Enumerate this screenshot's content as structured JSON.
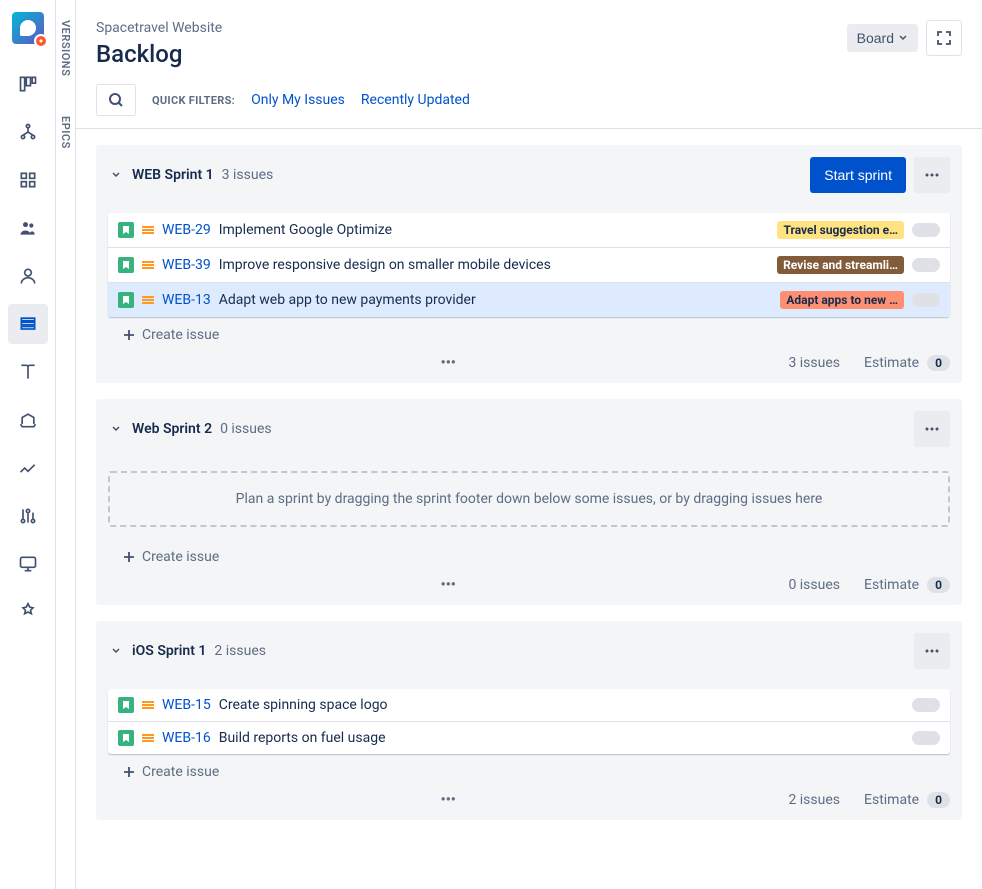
{
  "header": {
    "breadcrumb": "Spacetravel Website",
    "title": "Backlog",
    "board_label": "Board",
    "quick_filters_label": "QUICK FILTERS:",
    "filter_only_my": "Only My Issues",
    "filter_recent": "Recently Updated"
  },
  "side_panel": {
    "versions": "VERSIONS",
    "epics": "EPICS"
  },
  "sprints": [
    {
      "name": "WEB Sprint 1",
      "count_label": "3 issues",
      "has_start_button": true,
      "start_label": "Start sprint",
      "issues": [
        {
          "key": "WEB-29",
          "summary": "Implement Google Optimize",
          "selected": false,
          "epic": {
            "label": "Travel suggestion e…",
            "bg": "#ffe380",
            "fg": "#172b4d"
          }
        },
        {
          "key": "WEB-39",
          "summary": "Improve responsive design on smaller mobile devices",
          "selected": false,
          "epic": {
            "label": "Revise and streamli…",
            "bg": "#815b3a",
            "fg": "#ffffff"
          }
        },
        {
          "key": "WEB-13",
          "summary": "Adapt web app to new payments provider",
          "selected": true,
          "epic": {
            "label": "Adapt apps to new …",
            "bg": "#ff8f73",
            "fg": "#172b4d"
          }
        }
      ],
      "create_issue_label": "Create issue",
      "footer_count": "3 issues",
      "estimate_label": "Estimate",
      "estimate_value": "0",
      "empty_text": null
    },
    {
      "name": "Web Sprint 2",
      "count_label": "0 issues",
      "has_start_button": false,
      "issues": [],
      "create_issue_label": "Create issue",
      "footer_count": "0 issues",
      "estimate_label": "Estimate",
      "estimate_value": "0",
      "empty_text": "Plan a sprint by dragging the sprint footer down below some issues, or by dragging issues here"
    },
    {
      "name": "iOS Sprint 1",
      "count_label": "2 issues",
      "has_start_button": false,
      "issues": [
        {
          "key": "WEB-15",
          "summary": "Create spinning space logo",
          "selected": false,
          "epic": null
        },
        {
          "key": "WEB-16",
          "summary": "Build reports on fuel usage",
          "selected": false,
          "epic": null
        }
      ],
      "create_issue_label": "Create issue",
      "footer_count": "2 issues",
      "estimate_label": "Estimate",
      "estimate_value": "0",
      "empty_text": null
    }
  ],
  "colors": {
    "primary": "#0052cc",
    "text": "#172b4d",
    "subtle_text": "#5e6c84",
    "panel_bg": "#f4f5f7",
    "border": "#dfe1e6"
  }
}
